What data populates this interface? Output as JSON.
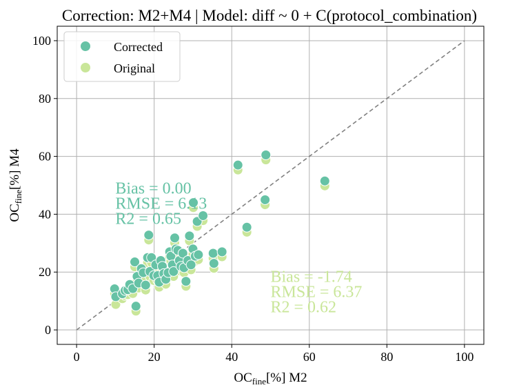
{
  "chart_data": {
    "type": "scatter",
    "title": "Correction: M2+M4 | Model: diff ~ 0 + C(protocol_combination)",
    "xlabel": {
      "main": "OC",
      "sub": "fine",
      "rest": "[%] M2"
    },
    "ylabel": {
      "main": "OC",
      "sub": "fine",
      "rest": "[%] M4"
    },
    "xlim": [
      -5,
      105
    ],
    "ylim": [
      -5,
      105
    ],
    "xticks": [
      0,
      20,
      40,
      60,
      80,
      100
    ],
    "yticks": [
      0,
      20,
      40,
      60,
      80,
      100
    ],
    "grid": true,
    "legend_position": "top-left",
    "identity_line": {
      "from": [
        0,
        0
      ],
      "to": [
        100,
        100
      ],
      "color": "#808080",
      "dashed": true
    },
    "series": [
      {
        "name": "Corrected",
        "color": "#66c2a5",
        "stats": [
          "Bias = 0.00",
          "RMSE = 6.13",
          "R2 = 0.65"
        ],
        "stats_anchor": [
          10,
          50
        ],
        "points": [
          [
            9.8,
            14.2
          ],
          [
            10.1,
            11.5
          ],
          [
            11.8,
            12.5
          ],
          [
            12.5,
            13.6
          ],
          [
            13.2,
            13.9
          ],
          [
            13.7,
            15.7
          ],
          [
            14.5,
            14.3
          ],
          [
            15.0,
            23.5
          ],
          [
            15.3,
            8.2
          ],
          [
            15.6,
            18.5
          ],
          [
            16.0,
            16.2
          ],
          [
            16.7,
            21.2
          ],
          [
            17.2,
            19.8
          ],
          [
            17.8,
            15.5
          ],
          [
            18.3,
            25.0
          ],
          [
            18.6,
            32.8
          ],
          [
            18.9,
            20.2
          ],
          [
            19.3,
            25.0
          ],
          [
            19.9,
            18.8
          ],
          [
            20.4,
            22.5
          ],
          [
            20.9,
            18.8
          ],
          [
            21.3,
            16.5
          ],
          [
            21.7,
            24.0
          ],
          [
            22.1,
            22.0
          ],
          [
            22.5,
            19.5
          ],
          [
            23.0,
            17.5
          ],
          [
            23.6,
            19.8
          ],
          [
            24.0,
            27.0
          ],
          [
            24.3,
            25.5
          ],
          [
            24.7,
            22.5
          ],
          [
            25.0,
            20.2
          ],
          [
            25.3,
            31.8
          ],
          [
            25.6,
            28.0
          ],
          [
            26.1,
            27.5
          ],
          [
            26.5,
            24.0
          ],
          [
            26.9,
            22.0
          ],
          [
            27.4,
            26.5
          ],
          [
            27.7,
            21.5
          ],
          [
            28.2,
            16.8
          ],
          [
            28.7,
            24.0
          ],
          [
            29.1,
            32.5
          ],
          [
            29.5,
            22.5
          ],
          [
            30.0,
            28.0
          ],
          [
            30.1,
            44.0
          ],
          [
            30.6,
            25.5
          ],
          [
            31.1,
            37.5
          ],
          [
            31.4,
            26.0
          ],
          [
            32.6,
            39.5
          ],
          [
            35.2,
            26.5
          ],
          [
            35.4,
            23.0
          ],
          [
            37.5,
            27.0
          ],
          [
            41.6,
            57.0
          ],
          [
            43.9,
            35.5
          ],
          [
            48.6,
            45.0
          ],
          [
            48.8,
            60.5
          ],
          [
            64.0,
            51.5
          ]
        ]
      },
      {
        "name": "Original",
        "color": "#c9e699",
        "stats": [
          "Bias = -1.74",
          "RMSE = 6.37",
          "R2 = 0.62"
        ],
        "stats_anchor": [
          50,
          19.5
        ],
        "points": [
          [
            9.8,
            12.5
          ],
          [
            10.1,
            8.8
          ],
          [
            11.8,
            10.8
          ],
          [
            12.5,
            11.9
          ],
          [
            13.2,
            12.2
          ],
          [
            13.7,
            14.0
          ],
          [
            14.5,
            12.6
          ],
          [
            15.0,
            21.8
          ],
          [
            15.3,
            6.5
          ],
          [
            15.6,
            16.8
          ],
          [
            16.0,
            14.5
          ],
          [
            16.7,
            19.5
          ],
          [
            17.2,
            18.1
          ],
          [
            17.8,
            13.8
          ],
          [
            18.3,
            23.3
          ],
          [
            18.6,
            31.1
          ],
          [
            18.9,
            18.5
          ],
          [
            19.3,
            23.3
          ],
          [
            19.9,
            17.1
          ],
          [
            20.4,
            20.8
          ],
          [
            20.9,
            17.1
          ],
          [
            21.3,
            14.8
          ],
          [
            21.7,
            22.3
          ],
          [
            22.1,
            20.3
          ],
          [
            22.5,
            17.8
          ],
          [
            23.0,
            15.8
          ],
          [
            23.6,
            18.1
          ],
          [
            24.0,
            25.3
          ],
          [
            24.3,
            23.8
          ],
          [
            24.7,
            20.8
          ],
          [
            25.0,
            18.5
          ],
          [
            25.3,
            30.1
          ],
          [
            25.6,
            26.3
          ],
          [
            26.1,
            25.8
          ],
          [
            26.5,
            22.3
          ],
          [
            26.9,
            20.3
          ],
          [
            27.4,
            24.8
          ],
          [
            27.7,
            19.8
          ],
          [
            28.2,
            15.1
          ],
          [
            28.7,
            22.3
          ],
          [
            29.1,
            30.8
          ],
          [
            29.5,
            20.8
          ],
          [
            30.0,
            26.3
          ],
          [
            30.1,
            42.3
          ],
          [
            30.6,
            23.8
          ],
          [
            31.1,
            35.8
          ],
          [
            31.4,
            24.3
          ],
          [
            32.6,
            37.8
          ],
          [
            35.2,
            24.8
          ],
          [
            35.4,
            21.3
          ],
          [
            37.5,
            25.3
          ],
          [
            41.6,
            55.3
          ],
          [
            43.9,
            33.8
          ],
          [
            48.6,
            43.3
          ],
          [
            48.8,
            58.8
          ],
          [
            64.0,
            49.8
          ]
        ]
      }
    ]
  }
}
